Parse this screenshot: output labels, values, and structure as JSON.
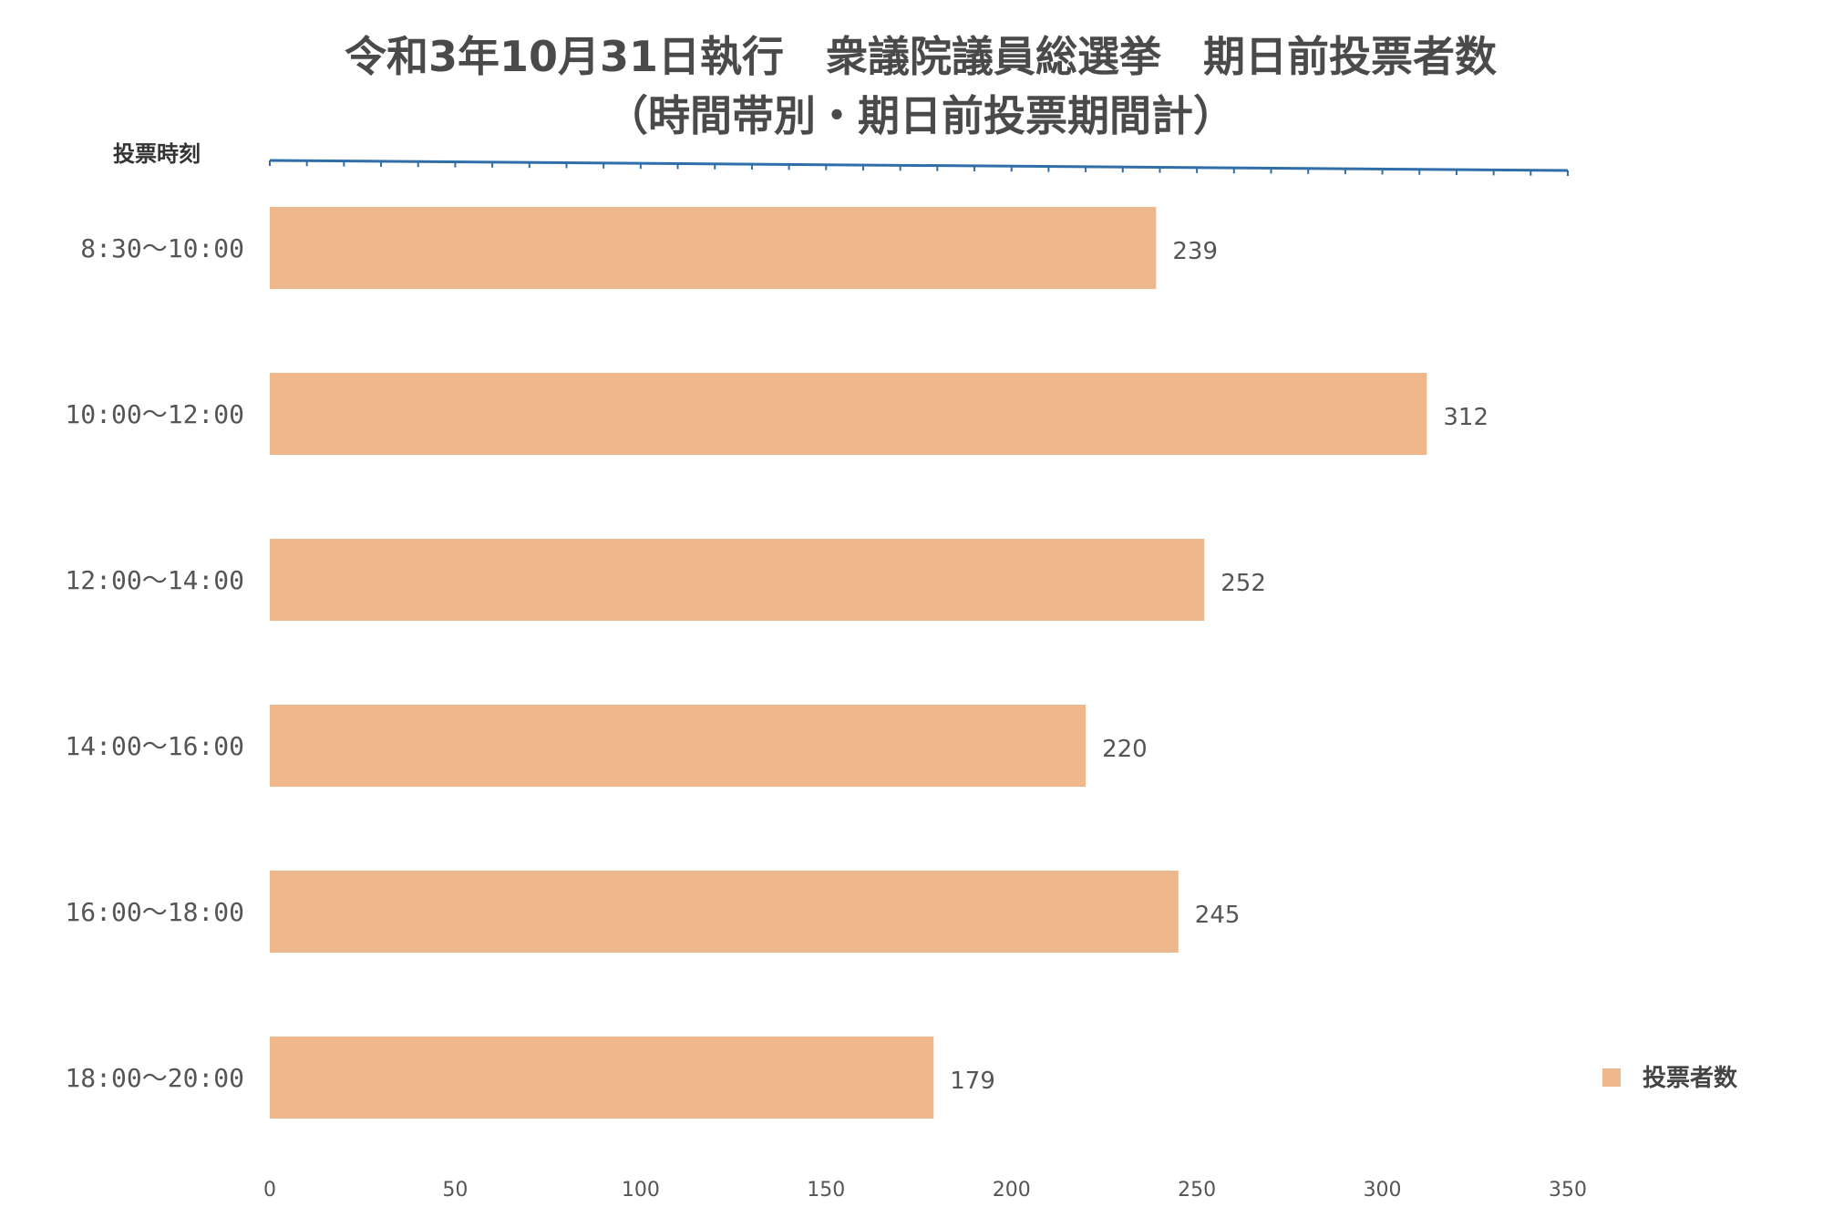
{
  "chart_data": {
    "type": "bar",
    "orientation": "horizontal",
    "title": "令和3年10月31日執行　衆議院議員総選挙　期日前投票者数",
    "subtitle": "（時間帯別・期日前投票期間計）",
    "ylabel": "投票時刻",
    "categories": [
      "8:30〜10:00",
      "10:00〜12:00",
      "12:00〜14:00",
      "14:00〜16:00",
      "16:00〜18:00",
      "18:00〜20:00"
    ],
    "series": [
      {
        "name": "投票者数",
        "values": [
          239,
          312,
          252,
          220,
          245,
          179
        ]
      }
    ],
    "xlim": [
      0,
      350
    ],
    "xticks": [
      "0",
      "50",
      "100",
      "150",
      "200",
      "250",
      "300",
      "350"
    ],
    "legend": "right",
    "grid": false,
    "colors": {
      "bar": "#efb88c",
      "axis": "#2f6ea8",
      "text": "#555555"
    }
  }
}
